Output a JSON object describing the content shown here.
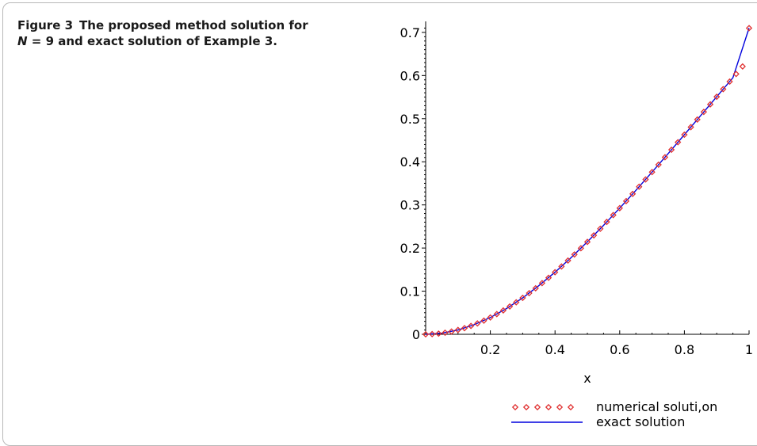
{
  "caption": {
    "figure_label": "Figure 3",
    "line1_text": "The proposed method solution for",
    "line2_var": "N",
    "line2_text": " = 9 and exact solution of Example 3."
  },
  "chart_data": {
    "type": "line",
    "title": "",
    "xlabel": "x",
    "ylabel": "",
    "xlim": [
      0,
      1
    ],
    "ylim": [
      0,
      0.72
    ],
    "x_ticks": [
      0.2,
      0.4,
      0.6,
      0.8,
      1
    ],
    "x_tick_labels": [
      "0.2",
      "0.4",
      "0.6",
      "0.8",
      "1"
    ],
    "y_ticks": [
      0,
      0.1,
      0.2,
      0.3,
      0.4,
      0.5,
      0.6,
      0.7
    ],
    "y_tick_labels": [
      "0",
      "0.1",
      "0.2",
      "0.3",
      "0.4",
      "0.5",
      "0.6",
      "0.7"
    ],
    "grid": false,
    "legend_position": "bottom-right",
    "series": [
      {
        "name": "numerical soluti,on",
        "style": "diamond-markers",
        "color": "#e03030",
        "x": [
          0,
          0.02,
          0.04,
          0.06,
          0.08,
          0.1,
          0.12,
          0.14,
          0.16,
          0.18,
          0.2,
          0.22,
          0.24,
          0.26,
          0.28,
          0.3,
          0.32,
          0.34,
          0.36,
          0.38,
          0.4,
          0.42,
          0.44,
          0.46,
          0.48,
          0.5,
          0.52,
          0.54,
          0.56,
          0.58,
          0.6,
          0.62,
          0.64,
          0.66,
          0.68,
          0.7,
          0.72,
          0.74,
          0.76,
          0.78,
          0.8,
          0.82,
          0.84,
          0.86,
          0.88,
          0.9,
          0.92,
          0.94,
          0.96,
          0.98,
          1
        ],
        "y": [
          0,
          0.0004,
          0.0016,
          0.0036,
          0.0064,
          0.01,
          0.0143,
          0.0194,
          0.0252,
          0.0317,
          0.039,
          0.0468,
          0.0553,
          0.0645,
          0.0742,
          0.0845,
          0.0954,
          0.1068,
          0.1187,
          0.1311,
          0.144,
          0.1573,
          0.171,
          0.1851,
          0.1995,
          0.2143,
          0.2294,
          0.2448,
          0.2605,
          0.2764,
          0.2926,
          0.3089,
          0.3255,
          0.3422,
          0.3591,
          0.3761,
          0.3933,
          0.4105,
          0.4279,
          0.4453,
          0.4628,
          0.4804,
          0.4979,
          0.5156,
          0.5332,
          0.5508,
          0.5684,
          0.586,
          0.6035,
          0.621,
          0.71
        ]
      },
      {
        "name": "exact solution",
        "style": "solid-line",
        "color": "#0000dd",
        "x": [
          0,
          0.05,
          0.1,
          0.15,
          0.2,
          0.25,
          0.3,
          0.35,
          0.4,
          0.45,
          0.5,
          0.55,
          0.6,
          0.65,
          0.7,
          0.75,
          0.8,
          0.85,
          0.9,
          0.95,
          1
        ],
        "y": [
          0,
          0.0025,
          0.01,
          0.0223,
          0.039,
          0.0597,
          0.0845,
          0.1127,
          0.144,
          0.178,
          0.2143,
          0.2526,
          0.2926,
          0.3338,
          0.3761,
          0.4192,
          0.4628,
          0.5067,
          0.5508,
          0.5947,
          0.71
        ]
      }
    ]
  }
}
